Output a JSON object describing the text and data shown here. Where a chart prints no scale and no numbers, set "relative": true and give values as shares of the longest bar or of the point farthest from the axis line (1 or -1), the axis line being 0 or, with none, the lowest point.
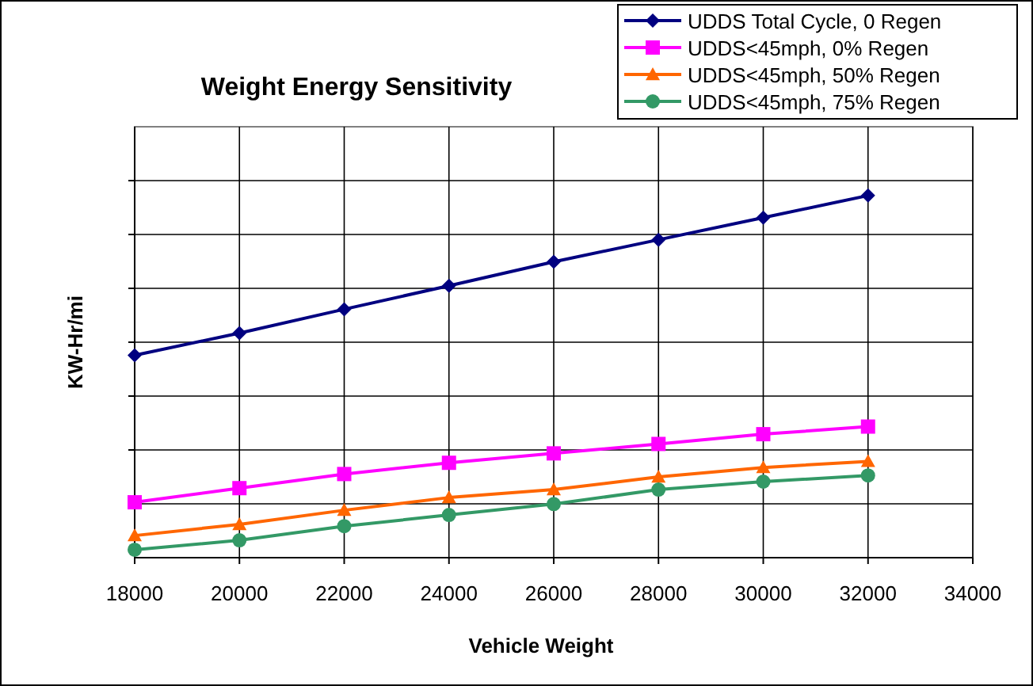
{
  "chart_data": {
    "type": "line",
    "title": "Weight Energy Sensitivity",
    "xlabel": "Vehicle Weight",
    "ylabel": "KW-Hr/mi",
    "relative": true,
    "x": [
      18000,
      20000,
      22000,
      24000,
      26000,
      28000,
      30000,
      32000
    ],
    "xlim": [
      18000,
      34000
    ],
    "xticks": [
      18000,
      20000,
      22000,
      24000,
      26000,
      28000,
      30000,
      32000,
      34000
    ],
    "grid": true,
    "legend": "top right",
    "series": [
      {
        "name": "UDDS Total Cycle, 0 Regen",
        "color": "#000080",
        "marker": "diamond",
        "values": [
          0.559,
          0.62,
          0.686,
          0.751,
          0.817,
          0.878,
          0.939,
          1
        ]
      },
      {
        "name": "UDDS<45mph, 0% Regen",
        "color": "#ff00ff",
        "marker": "square",
        "values": [
          0.153,
          0.192,
          0.231,
          0.262,
          0.288,
          0.314,
          0.341,
          0.362
        ]
      },
      {
        "name": "UDDS<45mph, 50% Regen",
        "color": "#ff6600",
        "marker": "triangle",
        "values": [
          0.061,
          0.092,
          0.131,
          0.166,
          0.188,
          0.223,
          0.249,
          0.266
        ]
      },
      {
        "name": "UDDS<45mph, 75% Regen",
        "color": "#339966",
        "marker": "circle",
        "values": [
          0.022,
          0.048,
          0.087,
          0.118,
          0.148,
          0.188,
          0.21,
          0.227
        ]
      }
    ]
  }
}
